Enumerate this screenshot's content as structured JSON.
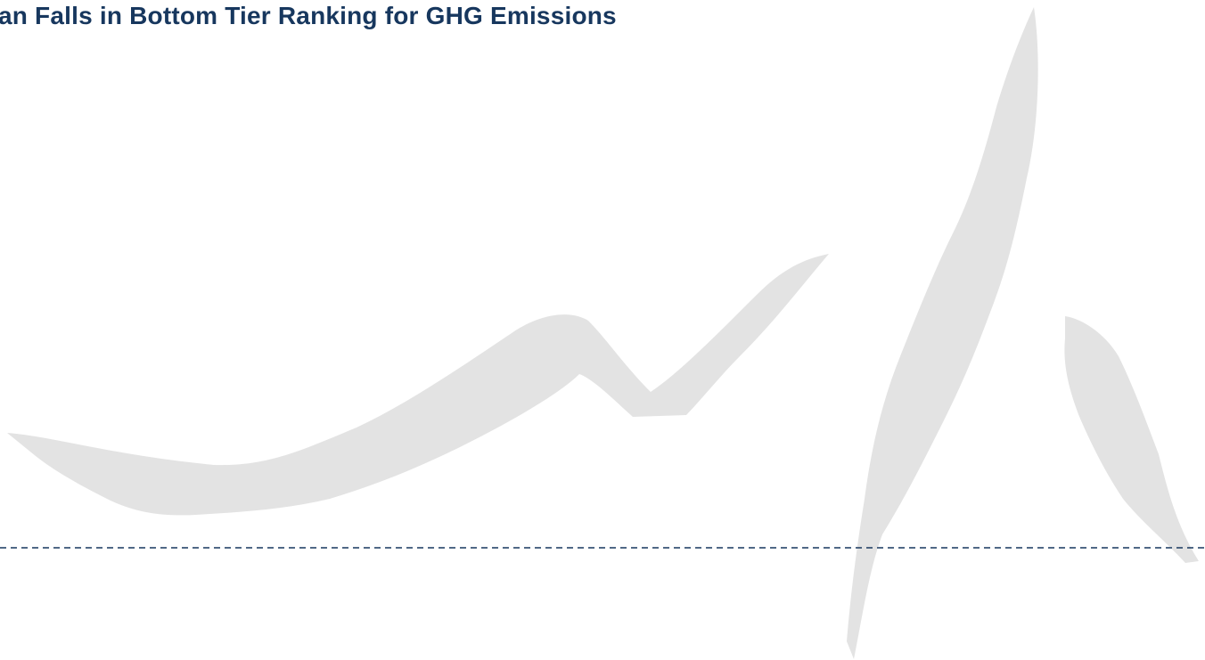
{
  "header": {
    "title": "an Falls in Bottom Tier Ranking for GHG Emissions"
  }
}
